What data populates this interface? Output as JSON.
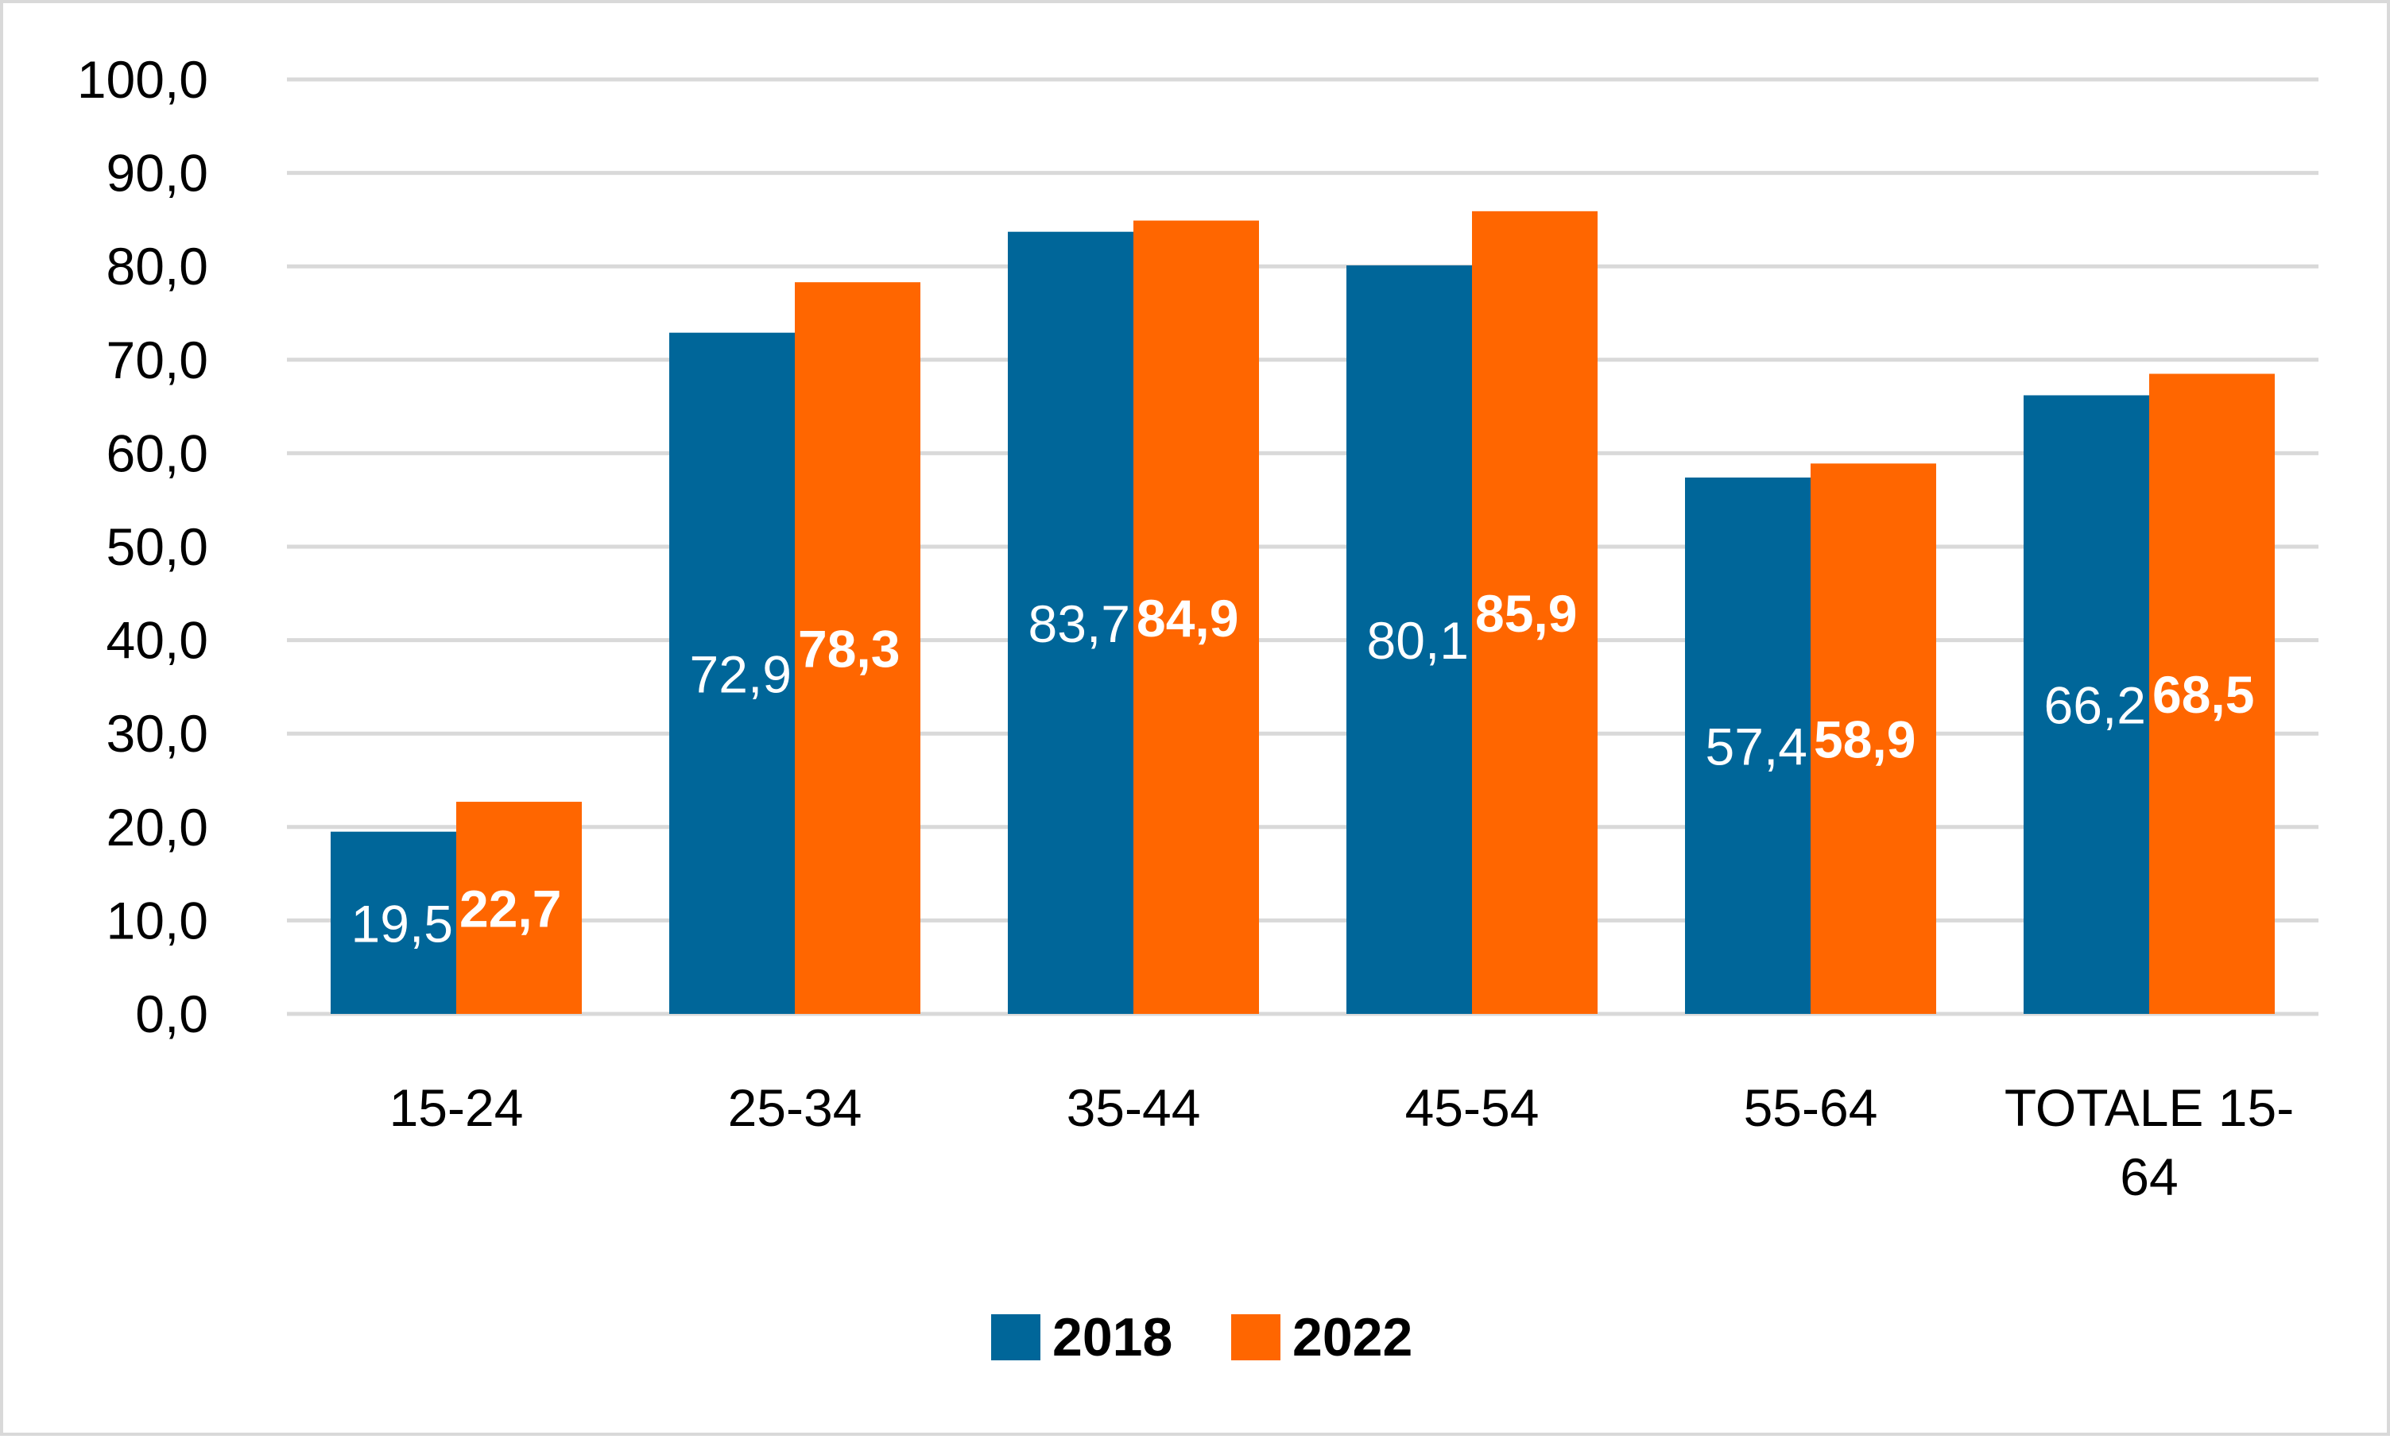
{
  "chart_data": {
    "type": "bar",
    "categories": [
      "15-24",
      "25-34",
      "35-44",
      "45-54",
      "55-64",
      "TOTALE 15-64"
    ],
    "category_lines": [
      [
        "15-24"
      ],
      [
        "25-34"
      ],
      [
        "35-44"
      ],
      [
        "45-54"
      ],
      [
        "55-64"
      ],
      [
        "TOTALE 15-",
        "64"
      ]
    ],
    "series": [
      {
        "name": "2018",
        "values": [
          19.5,
          72.9,
          83.7,
          80.1,
          57.4,
          66.2
        ],
        "labels": [
          "19,5",
          "72,9",
          "83,7",
          "80,1",
          "57,4",
          "66,2"
        ],
        "color": "#006699"
      },
      {
        "name": "2022",
        "values": [
          22.7,
          78.3,
          84.9,
          85.9,
          58.9,
          68.5
        ],
        "labels": [
          "22,7",
          "78,3",
          "84,9",
          "85,9",
          "58,9",
          "68,5"
        ],
        "color": "#ff6600"
      }
    ],
    "ylim": [
      0,
      100
    ],
    "y_ticks": [
      0,
      10,
      20,
      30,
      40,
      50,
      60,
      70,
      80,
      90,
      100
    ],
    "y_tick_labels": [
      "0,0",
      "10,0",
      "20,0",
      "30,0",
      "40,0",
      "50,0",
      "60,0",
      "70,0",
      "80,0",
      "90,0",
      "100,0"
    ],
    "grid": true,
    "legend_position": "bottom-center",
    "gridline_color": "#d9d9d9"
  }
}
